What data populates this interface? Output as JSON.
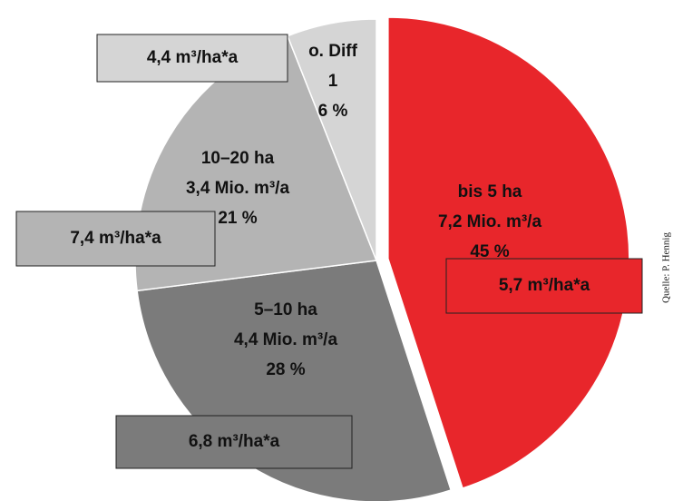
{
  "chart_data": {
    "type": "pie",
    "categories": [
      "bis 5 ha",
      "5–10 ha",
      "10–20 ha",
      "o. Diff"
    ],
    "volumes": [
      "7,2 Mio. m³/a",
      "4,4 Mio. m³/a",
      "3,4 Mio. m³/a",
      "1"
    ],
    "values": [
      45,
      28,
      21,
      6
    ],
    "value_labels": [
      "45 %",
      "28 %",
      "21 %",
      "6 %"
    ],
    "rates": [
      "5,7 m³/ha*a",
      "6,8 m³/ha*a",
      "7,4 m³/ha*a",
      "4,4 m³/ha*a"
    ],
    "colors": [
      "#e8262b",
      "#7b7b7b",
      "#b4b4b4",
      "#d5d5d5"
    ],
    "exploded": [
      true,
      false,
      false,
      false
    ],
    "source": "Quelle: P. Hennig"
  }
}
